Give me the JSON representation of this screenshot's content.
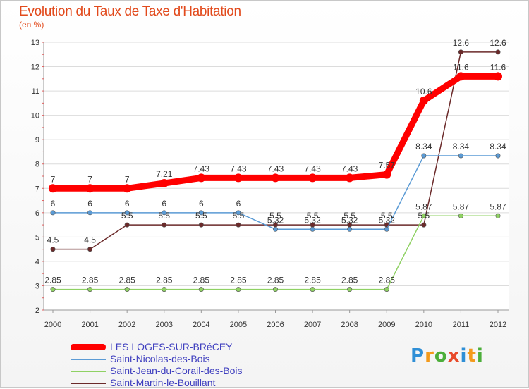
{
  "header": {
    "title": "Evolution du Taux de Taxe d'Habitation",
    "subtitle": "(en %)"
  },
  "logo": {
    "letters": [
      "P",
      "r",
      "o",
      "x",
      "i",
      "t",
      "i"
    ],
    "colors": [
      "#2f8fd6",
      "#f39a1b",
      "#4cae3a",
      "#e84a2a",
      "#2f8fd6",
      "#f39a1b",
      "#4cae3a"
    ]
  },
  "chart_data": {
    "type": "line",
    "x": [
      "2000",
      "2001",
      "2002",
      "2003",
      "2004",
      "2005",
      "2006",
      "2007",
      "2008",
      "2009",
      "2010",
      "2011",
      "2012"
    ],
    "ylim": [
      2,
      13
    ],
    "yticks": [
      "2",
      "3",
      "4",
      "5",
      "6",
      "7",
      "8",
      "9",
      "10",
      "11",
      "12",
      "13"
    ],
    "grid": "horizontal",
    "series": [
      {
        "name": "LES LOGES-SUR-BRéCEY",
        "color": "#ff0000",
        "values": [
          7,
          7,
          7,
          7.21,
          7.43,
          7.43,
          7.43,
          7.43,
          7.43,
          7.57,
          10.6,
          11.6,
          11.6
        ],
        "labels": [
          "7",
          "7",
          "7",
          "7.21",
          "7.43",
          "7.43",
          "7.43",
          "7.43",
          "7.43",
          "7.57",
          "10.6",
          "11.6",
          "11.6"
        ]
      },
      {
        "name": "Saint-Nicolas-des-Bois",
        "color": "#5b9bd5",
        "values": [
          6,
          6,
          6,
          6,
          6,
          6,
          5.32,
          5.32,
          5.32,
          5.32,
          8.34,
          8.34,
          8.34
        ],
        "labels": [
          "6",
          "6",
          "6",
          "6",
          "6",
          "6",
          "5.32",
          "5.32",
          "5.32",
          "5.32",
          "8.34",
          "8.34",
          "8.34"
        ]
      },
      {
        "name": "Saint-Jean-du-Corail-des-Bois",
        "color": "#8fd163",
        "values": [
          2.85,
          2.85,
          2.85,
          2.85,
          2.85,
          2.85,
          2.85,
          2.85,
          2.85,
          2.85,
          5.87,
          5.87,
          5.87
        ],
        "labels": [
          "2.85",
          "2.85",
          "2.85",
          "2.85",
          "2.85",
          "2.85",
          "2.85",
          "2.85",
          "2.85",
          "2.85",
          "5.87",
          "5.87",
          "5.87"
        ]
      },
      {
        "name": "Saint-Martin-le-Bouillant",
        "color": "#6b2a2a",
        "values": [
          4.5,
          4.5,
          5.5,
          5.5,
          5.5,
          5.5,
          5.5,
          5.5,
          5.5,
          5.5,
          5.5,
          12.6,
          12.6
        ],
        "labels": [
          "4.5",
          "4.5",
          "5.5",
          "5.5",
          "5.5",
          "5.5",
          "5.5",
          "5.5",
          "5.5",
          "5.5",
          "5.5",
          "12.6",
          "12.6"
        ]
      }
    ]
  }
}
